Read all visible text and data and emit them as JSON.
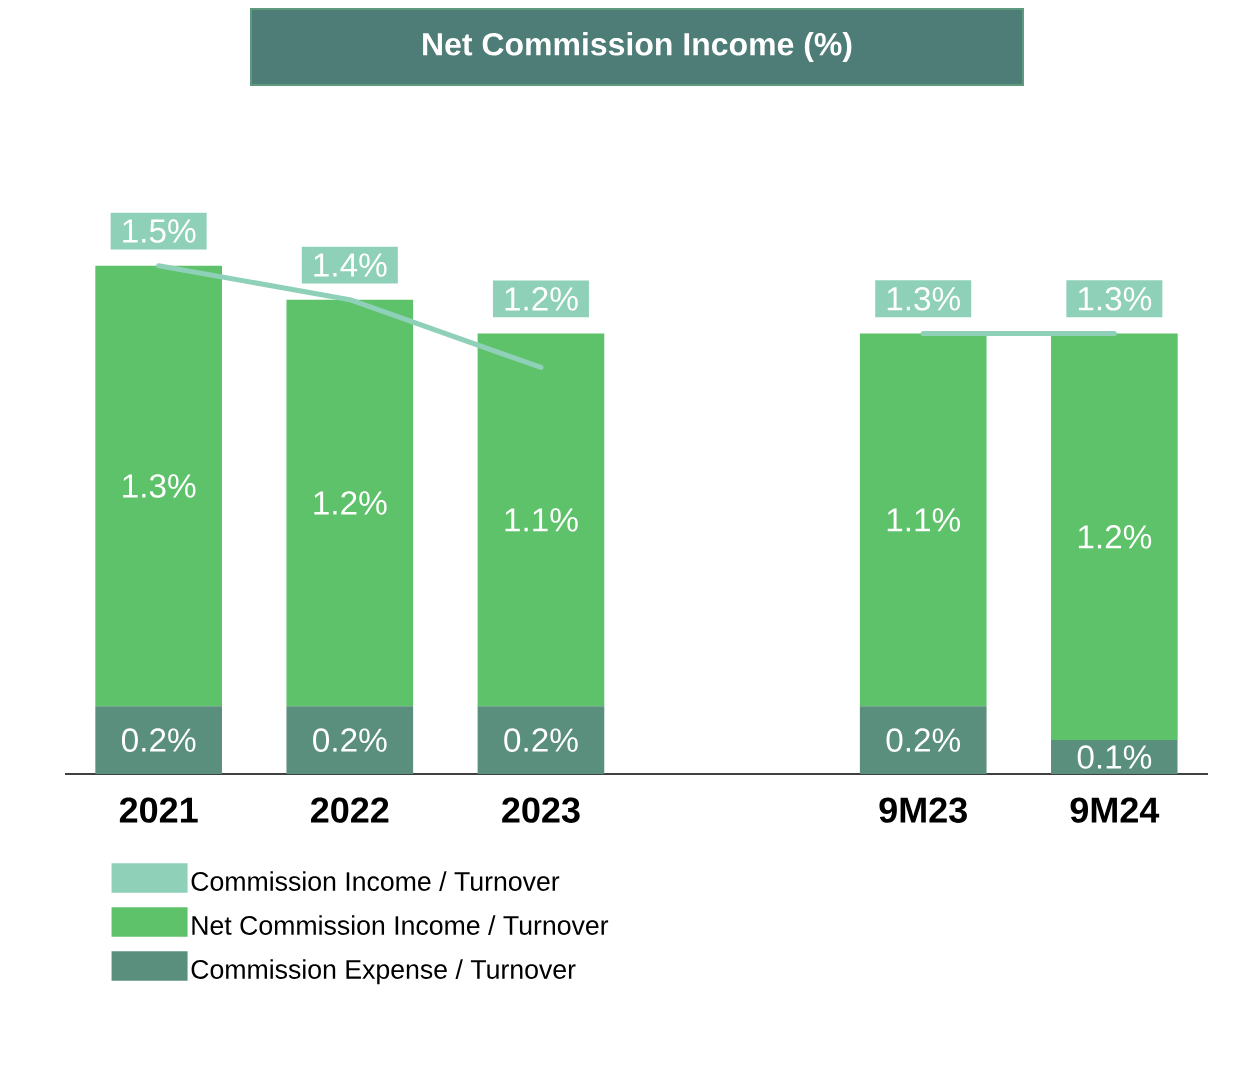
{
  "chart_data": {
    "type": "bar",
    "title": "Net Commission Income (%)",
    "stacked": true,
    "legend": "bottom left",
    "categories": [
      "2021",
      "2022",
      "2023",
      null,
      "9M23",
      "9M24"
    ],
    "series": [
      {
        "name": "Commission Expense / Turnover",
        "color": "#5a8f7e",
        "values": [
          0.2,
          0.2,
          0.2,
          null,
          0.2,
          0.1
        ],
        "value_labels": [
          "0.2%",
          "0.2%",
          "0.2%",
          null,
          "0.2%",
          "0.1%"
        ]
      },
      {
        "name": "Net Commission Income / Turnover",
        "color": "#5ec26a",
        "values": [
          1.3,
          1.2,
          1.1,
          null,
          1.1,
          1.2
        ],
        "value_labels": [
          "1.3%",
          "1.2%",
          "1.1%",
          null,
          "1.1%",
          "1.2%"
        ]
      },
      {
        "name": "Commission Income / Turnover",
        "type": "line",
        "color": "#8fd0b8",
        "values": [
          1.5,
          1.4,
          1.2,
          null,
          1.3,
          1.3
        ],
        "value_labels": [
          "1.5%",
          "1.4%",
          "1.2%",
          null,
          "1.3%",
          "1.3%"
        ]
      }
    ]
  }
}
